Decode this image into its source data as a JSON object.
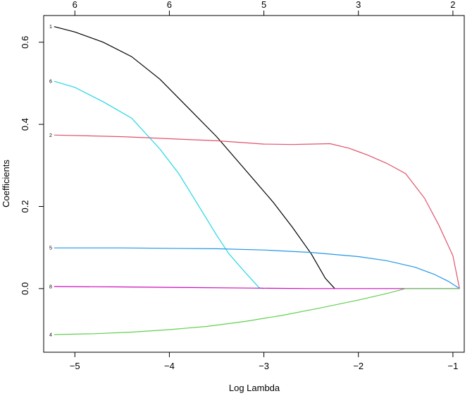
{
  "chart_data": {
    "type": "line",
    "title": "",
    "xlabel": "Log Lambda",
    "ylabel": "Coefficients",
    "xlim": [
      -5.33,
      -0.88
    ],
    "ylim": [
      -0.155,
      0.665
    ],
    "grid": false,
    "legend": "none",
    "x_ticks": [
      -5,
      -4,
      -3,
      -2,
      -1
    ],
    "x_tick_labels": [
      "−5",
      "−4",
      "−3",
      "−2",
      "−1"
    ],
    "y_ticks": [
      0.0,
      0.2,
      0.4,
      0.6
    ],
    "y_tick_labels": [
      "0.0",
      "0.2",
      "0.4",
      "0.6"
    ],
    "top_axis": {
      "x": [
        -5.0,
        -4.0,
        -3.0,
        -2.0,
        -1.0
      ],
      "labels": [
        "6",
        "6",
        "5",
        "3",
        "2"
      ]
    },
    "series": [
      {
        "label": "1",
        "color": "#000000",
        "x": [
          -5.22,
          -5.0,
          -4.7,
          -4.4,
          -4.1,
          -3.8,
          -3.5,
          -3.2,
          -2.9,
          -2.7,
          -2.5,
          -2.35,
          -2.25
        ],
        "y": [
          0.638,
          0.625,
          0.6,
          0.565,
          0.51,
          0.44,
          0.37,
          0.29,
          0.21,
          0.15,
          0.085,
          0.025,
          0.0
        ]
      },
      {
        "label": "6",
        "color": "#22d6e6",
        "x": [
          -5.22,
          -5.0,
          -4.7,
          -4.4,
          -4.1,
          -3.9,
          -3.7,
          -3.5,
          -3.37,
          -3.2,
          -3.05,
          -3.0
        ],
        "y": [
          0.505,
          0.49,
          0.455,
          0.415,
          0.34,
          0.28,
          0.205,
          0.13,
          0.085,
          0.04,
          0.002,
          0.0
        ]
      },
      {
        "label": "2",
        "color": "#df536b",
        "x": [
          -5.22,
          -4.5,
          -4.0,
          -3.5,
          -3.0,
          -2.7,
          -2.5,
          -2.3,
          -2.1,
          -1.9,
          -1.7,
          -1.5,
          -1.3,
          -1.15,
          -1.0,
          -0.93
        ],
        "y": [
          0.374,
          0.37,
          0.365,
          0.36,
          0.352,
          0.351,
          0.352,
          0.353,
          0.342,
          0.325,
          0.305,
          0.28,
          0.22,
          0.155,
          0.08,
          0.0
        ]
      },
      {
        "label": "5",
        "color": "#2297e6",
        "x": [
          -5.22,
          -4.5,
          -4.0,
          -3.5,
          -3.0,
          -2.5,
          -2.0,
          -1.7,
          -1.4,
          -1.2,
          -1.05,
          -0.93
        ],
        "y": [
          0.099,
          0.099,
          0.098,
          0.097,
          0.094,
          0.088,
          0.078,
          0.068,
          0.052,
          0.035,
          0.018,
          0.0
        ]
      },
      {
        "label": "8",
        "color": "#cd0bbc",
        "x": [
          -5.22,
          -4.5,
          -4.0,
          -3.5,
          -3.0,
          -2.5,
          -2.0,
          -1.5,
          -1.0,
          -0.93
        ],
        "y": [
          0.005,
          0.004,
          0.003,
          0.002,
          0.001,
          0.0,
          0.0,
          0.0,
          0.0,
          0.0
        ]
      },
      {
        "label": "4",
        "color": "#61d04f",
        "x": [
          -5.22,
          -4.8,
          -4.4,
          -4.0,
          -3.6,
          -3.2,
          -2.8,
          -2.4,
          -2.0,
          -1.7,
          -1.5,
          -1.2,
          -0.93
        ],
        "y": [
          -0.112,
          -0.11,
          -0.106,
          -0.1,
          -0.092,
          -0.08,
          -0.065,
          -0.047,
          -0.028,
          -0.012,
          0.0,
          0.0,
          0.0
        ]
      }
    ]
  }
}
